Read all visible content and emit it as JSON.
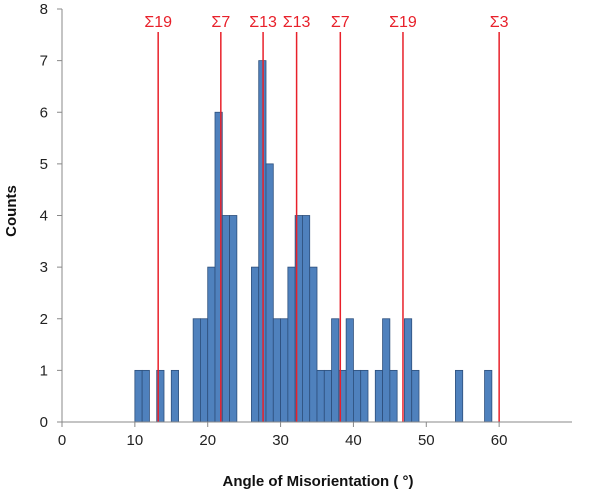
{
  "chart_data": {
    "type": "bar",
    "xlabel": "Angle of Misorientation ( °)",
    "ylabel": "Counts",
    "xlim": [
      0,
      70
    ],
    "ylim": [
      0,
      8
    ],
    "x_ticks": [
      0,
      10,
      20,
      30,
      40,
      50,
      60
    ],
    "y_ticks": [
      0,
      1,
      2,
      3,
      4,
      5,
      6,
      7,
      8
    ],
    "bin_width": 1,
    "grid": false,
    "bar_color": "#4f81bd",
    "bar_edge_color": "#2d4f7c",
    "bars": [
      {
        "x": 10,
        "count": 1
      },
      {
        "x": 11,
        "count": 1
      },
      {
        "x": 13,
        "count": 1
      },
      {
        "x": 15,
        "count": 1
      },
      {
        "x": 18,
        "count": 2
      },
      {
        "x": 19,
        "count": 2
      },
      {
        "x": 20,
        "count": 3
      },
      {
        "x": 21,
        "count": 6
      },
      {
        "x": 22,
        "count": 4
      },
      {
        "x": 23,
        "count": 4
      },
      {
        "x": 26,
        "count": 3
      },
      {
        "x": 27,
        "count": 7
      },
      {
        "x": 28,
        "count": 5
      },
      {
        "x": 29,
        "count": 2
      },
      {
        "x": 30,
        "count": 2
      },
      {
        "x": 31,
        "count": 3
      },
      {
        "x": 32,
        "count": 4
      },
      {
        "x": 33,
        "count": 4
      },
      {
        "x": 34,
        "count": 3
      },
      {
        "x": 35,
        "count": 1
      },
      {
        "x": 36,
        "count": 1
      },
      {
        "x": 37,
        "count": 2
      },
      {
        "x": 38,
        "count": 1
      },
      {
        "x": 39,
        "count": 2
      },
      {
        "x": 40,
        "count": 1
      },
      {
        "x": 41,
        "count": 1
      },
      {
        "x": 43,
        "count": 1
      },
      {
        "x": 44,
        "count": 2
      },
      {
        "x": 45,
        "count": 1
      },
      {
        "x": 47,
        "count": 2
      },
      {
        "x": 48,
        "count": 1
      },
      {
        "x": 54,
        "count": 1
      },
      {
        "x": 58,
        "count": 1
      }
    ],
    "annotation_color": "#e8202a",
    "annotations": [
      {
        "label": "Σ19",
        "x": 13.2
      },
      {
        "label": "Σ7",
        "x": 21.8
      },
      {
        "label": "Σ13",
        "x": 27.6
      },
      {
        "label": "Σ13",
        "x": 32.2
      },
      {
        "label": "Σ7",
        "x": 38.2
      },
      {
        "label": "Σ19",
        "x": 46.8
      },
      {
        "label": "Σ3",
        "x": 60
      }
    ]
  }
}
